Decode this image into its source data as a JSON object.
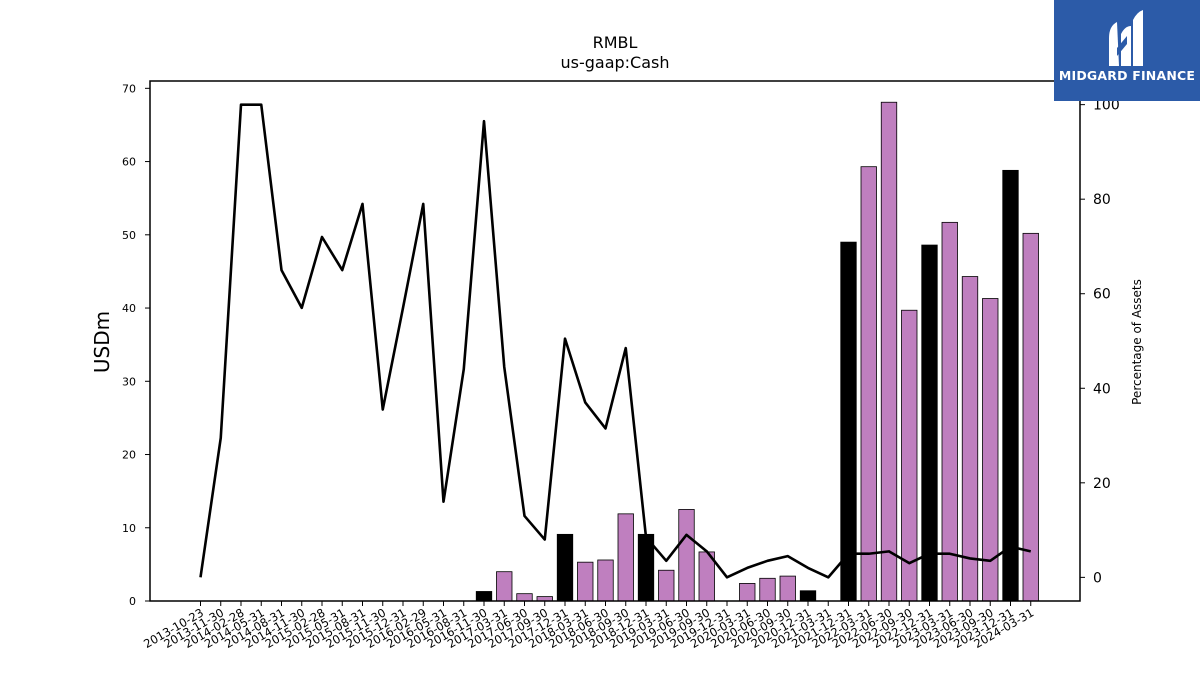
{
  "logo": {
    "text": "MIDGARD FINANCE",
    "background": "#2c5ba8"
  },
  "chart_data": {
    "type": "bar",
    "title": "RMBL",
    "subtitle": "us-gaap:Cash",
    "ylabel": "USDm",
    "y2label": "Percentage of Assets",
    "ylim": [
      0,
      71
    ],
    "y2lim": [
      -5,
      105
    ],
    "yticks": [
      0,
      10,
      20,
      30,
      40,
      50,
      60,
      70
    ],
    "y2ticks": [
      0,
      20,
      40,
      60,
      80,
      100
    ],
    "grid": false,
    "colors": {
      "annual": "#000000",
      "quarterly": "#bf7fbf",
      "line": "#000000"
    },
    "categories": [
      "2013-10-23",
      "2013-11-30",
      "2014-02-28",
      "2014-05-31",
      "2014-08-31",
      "2014-11-30",
      "2015-02-28",
      "2015-05-31",
      "2015-08-31",
      "2015-11-30",
      "2015-12-31",
      "2016-02-29",
      "2016-05-31",
      "2016-08-31",
      "2016-11-30",
      "2017-03-31",
      "2017-06-30",
      "2017-09-30",
      "2017-12-31",
      "2018-03-31",
      "2018-06-30",
      "2018-09-30",
      "2018-12-31",
      "2019-03-31",
      "2019-06-30",
      "2019-09-30",
      "2019-12-31",
      "2020-03-31",
      "2020-06-30",
      "2020-09-30",
      "2020-12-31",
      "2021-03-31",
      "2021-12-31",
      "2022-03-31",
      "2022-06-30",
      "2022-09-30",
      "2022-12-31",
      "2023-03-31",
      "2023-06-30",
      "2023-09-30",
      "2023-12-31",
      "2024-03-31"
    ],
    "series": [
      {
        "kind": "bar",
        "axis": "left",
        "values": [
          0,
          0,
          0,
          0,
          0,
          0,
          0,
          0,
          0,
          0,
          0,
          0,
          0,
          0,
          1.3,
          4.0,
          1.0,
          0.6,
          9.1,
          5.3,
          5.6,
          11.9,
          9.1,
          4.2,
          12.5,
          6.7,
          0,
          2.4,
          3.1,
          3.4,
          1.4,
          0,
          49.0,
          59.3,
          68.1,
          39.7,
          48.6,
          51.7,
          44.3,
          41.3,
          58.8,
          50.2
        ],
        "annual": [
          false,
          false,
          false,
          false,
          false,
          false,
          false,
          false,
          false,
          false,
          false,
          false,
          false,
          false,
          true,
          false,
          false,
          false,
          true,
          false,
          false,
          false,
          true,
          false,
          false,
          false,
          false,
          false,
          false,
          false,
          true,
          false,
          true,
          false,
          false,
          false,
          true,
          false,
          false,
          false,
          true,
          false
        ]
      },
      {
        "kind": "line",
        "axis": "right",
        "values": [
          0,
          29.5,
          100,
          100,
          65,
          57,
          72,
          65,
          79,
          35.5,
          57,
          79,
          16,
          44,
          96.5,
          44.5,
          13,
          8,
          50.5,
          37,
          31.5,
          48.5,
          8.5,
          3.5,
          9,
          5.5,
          0,
          2,
          3.5,
          4.5,
          2,
          0,
          5,
          5,
          5.5,
          3,
          5,
          5,
          4,
          3.5,
          6.5,
          5.5
        ]
      }
    ]
  }
}
